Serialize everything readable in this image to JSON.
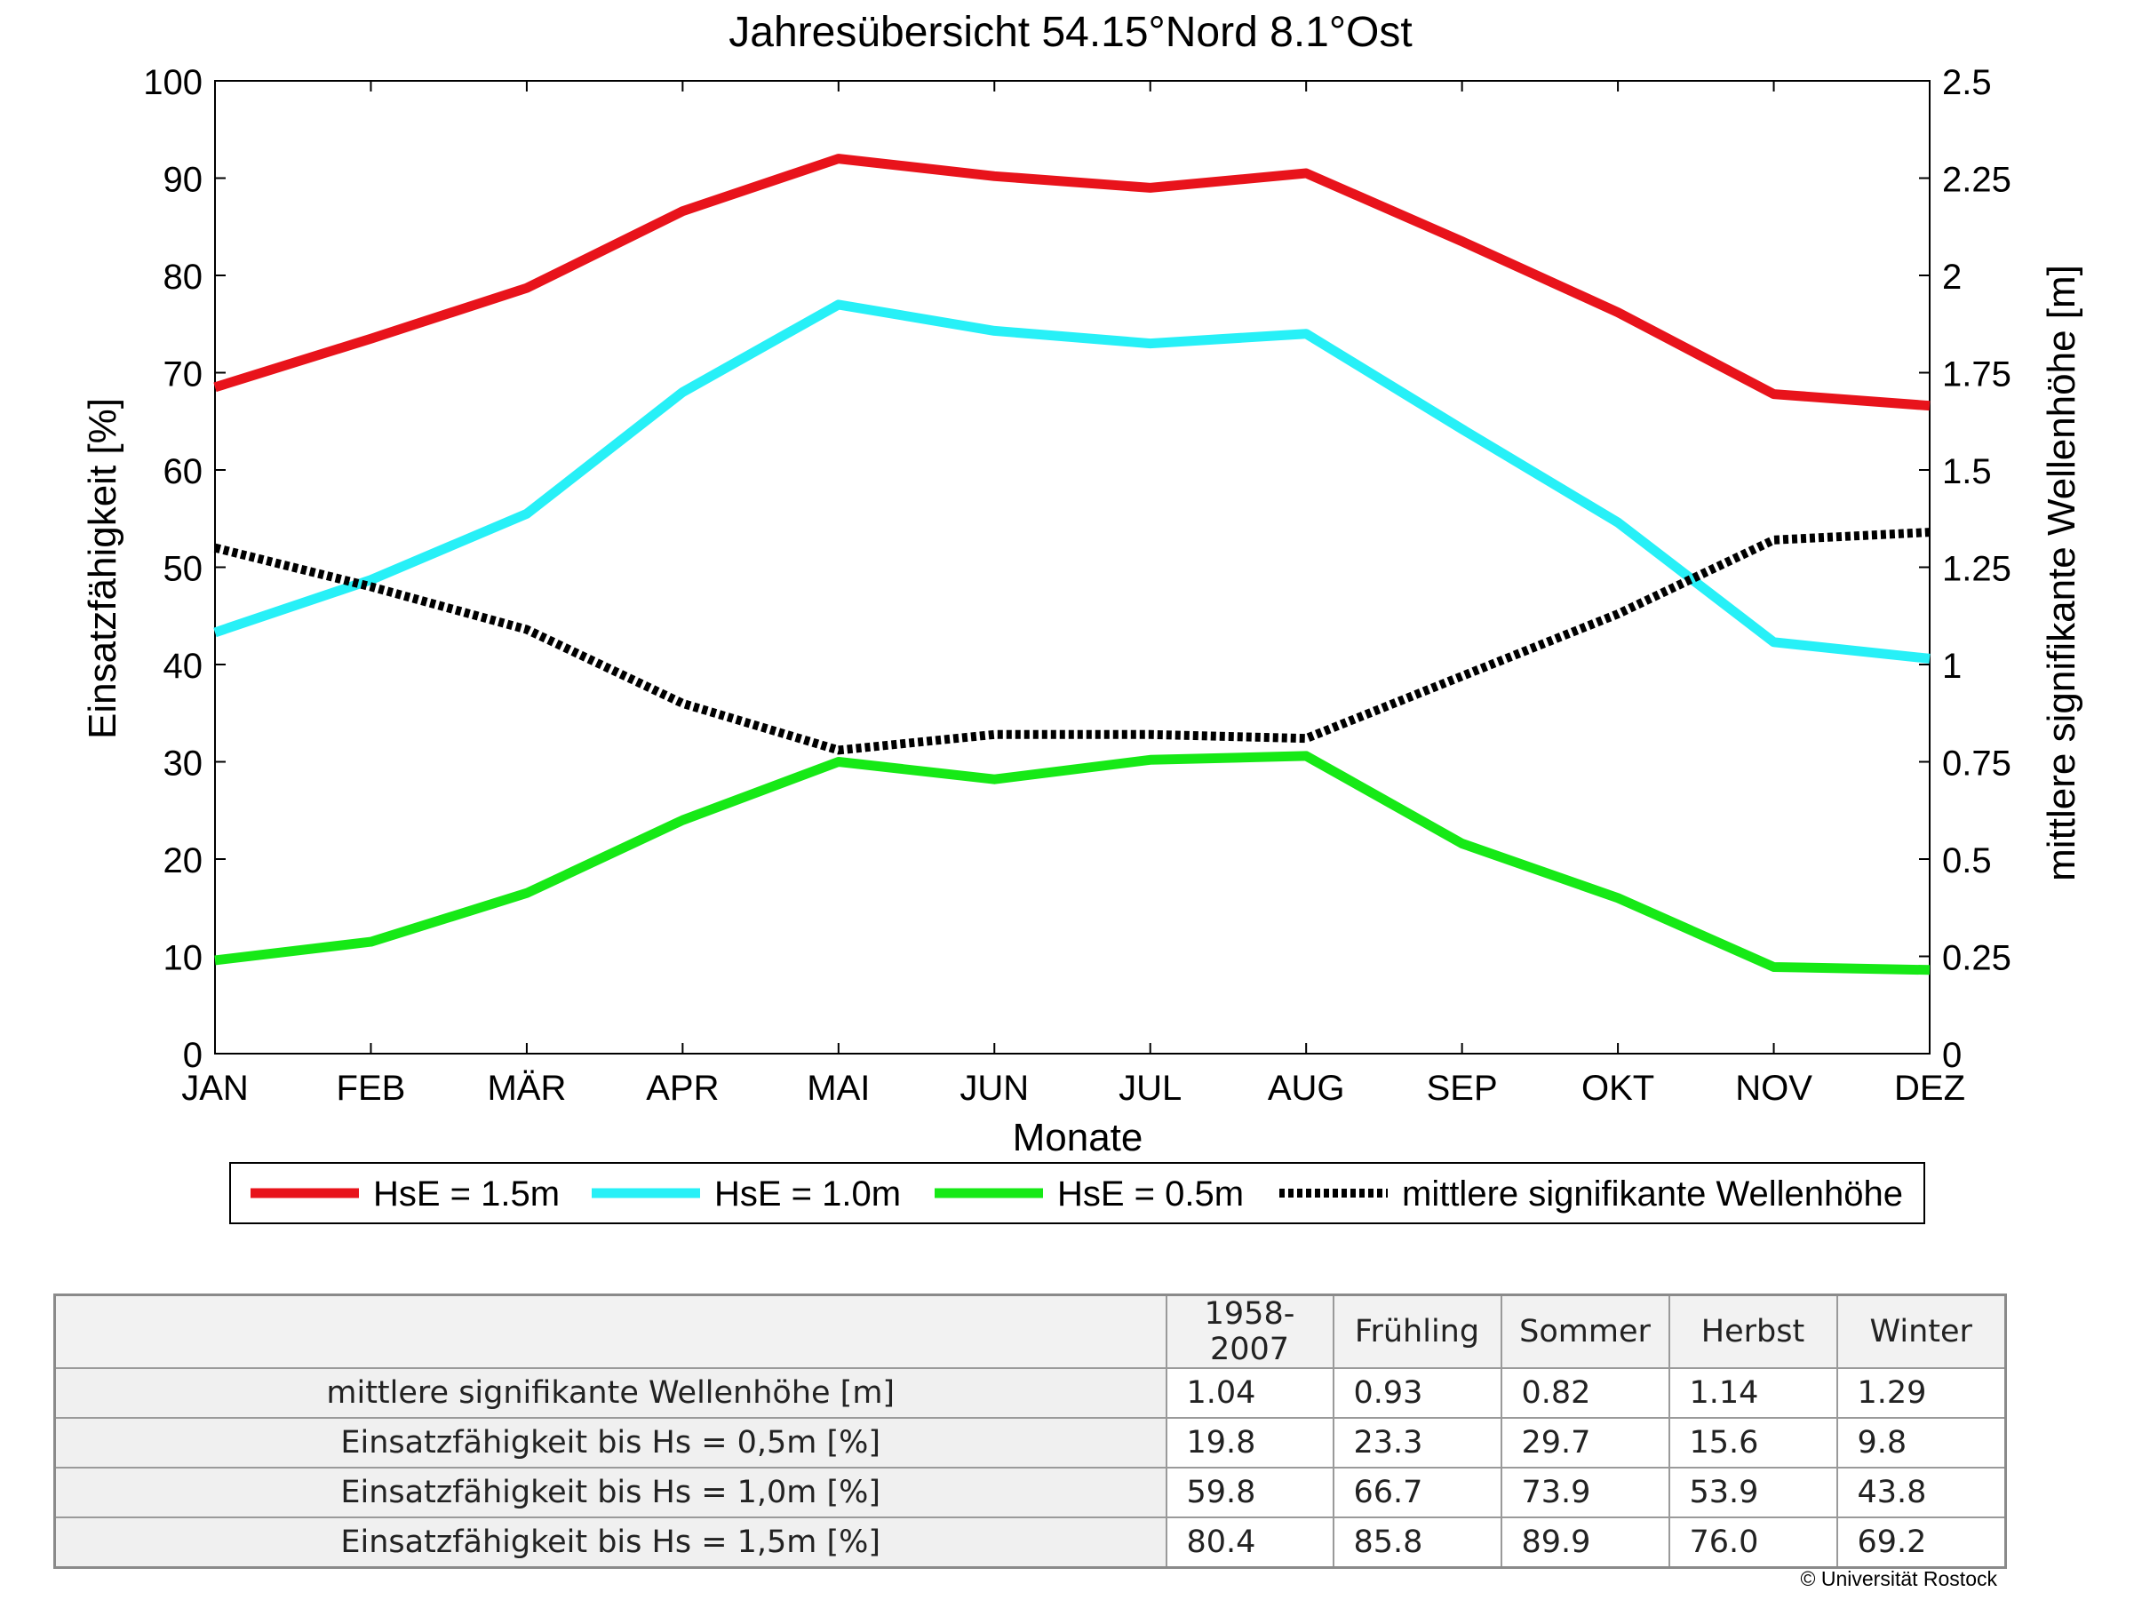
{
  "chart_data": {
    "type": "line",
    "title": "Jahresübersicht  54.15°Nord  8.1°Ost",
    "xlabel": "Monate",
    "ylabel": "Einsatzfähigkeit [%]",
    "ylabel_right": "mittlere signifikante Wellenhöhe [m]",
    "categories": [
      "JAN",
      "FEB",
      "MÄR",
      "APR",
      "MAI",
      "JUN",
      "JUL",
      "AUG",
      "SEP",
      "OKT",
      "NOV",
      "DEZ"
    ],
    "ylim": [
      0,
      100
    ],
    "yticks": [
      "0",
      "10",
      "20",
      "30",
      "40",
      "50",
      "60",
      "70",
      "80",
      "90",
      "100"
    ],
    "ylim_right": [
      0,
      2.5
    ],
    "yticks_right": [
      "0",
      "0.25",
      "0.5",
      "0.75",
      "1",
      "1.25",
      "1.5",
      "1.75",
      "2",
      "2.25",
      "2.5"
    ],
    "grid": false,
    "legend_position": "below",
    "series": [
      {
        "name": "HsE = 1.5m",
        "axis": "left",
        "color": "#e8131b",
        "style": "solid",
        "values": [
          68.5,
          73.5,
          78.7,
          86.6,
          92.0,
          90.2,
          89.0,
          90.5,
          83.5,
          76.2,
          67.8,
          66.6
        ]
      },
      {
        "name": "HsE = 1.0m",
        "axis": "left",
        "color": "#27f0f7",
        "style": "solid",
        "values": [
          43.3,
          48.7,
          55.5,
          68.0,
          77.0,
          74.3,
          73.0,
          74.0,
          64.2,
          54.6,
          42.3,
          40.6
        ]
      },
      {
        "name": "HsE = 0.5m",
        "axis": "left",
        "color": "#16e916",
        "style": "solid",
        "values": [
          9.6,
          11.5,
          16.5,
          24.0,
          30.0,
          28.2,
          30.2,
          30.6,
          21.6,
          16.0,
          8.9,
          8.6
        ]
      },
      {
        "name": "mittlere signifikante Wellenhöhe",
        "axis": "right",
        "color": "#000000",
        "style": "dotted",
        "values": [
          1.3,
          1.2,
          1.09,
          0.9,
          0.78,
          0.82,
          0.82,
          0.81,
          0.97,
          1.13,
          1.32,
          1.34
        ]
      }
    ]
  },
  "table": {
    "headers": [
      "",
      "1958-2007",
      "Frühling",
      "Sommer",
      "Herbst",
      "Winter"
    ],
    "rows": [
      {
        "label": "mittlere signifikante Wellenhöhe [m]",
        "values": [
          "1.04",
          "0.93",
          "0.82",
          "1.14",
          "1.29"
        ]
      },
      {
        "label": "Einsatzfähigkeit bis Hs = 0,5m [%]",
        "values": [
          "19.8",
          "23.3",
          "29.7",
          "15.6",
          "9.8"
        ]
      },
      {
        "label": "Einsatzfähigkeit bis Hs = 1,0m [%]",
        "values": [
          "59.8",
          "66.7",
          "73.9",
          "53.9",
          "43.8"
        ]
      },
      {
        "label": "Einsatzfähigkeit bis Hs = 1,5m [%]",
        "values": [
          "80.4",
          "85.8",
          "89.9",
          "76.0",
          "69.2"
        ]
      }
    ]
  },
  "copyright": "© Universität Rostock"
}
